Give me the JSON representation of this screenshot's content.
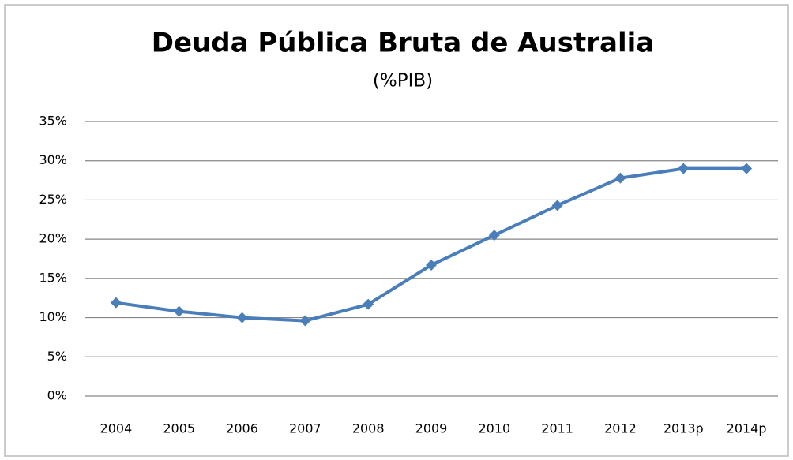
{
  "chart_data": {
    "type": "line",
    "title": "Deuda Pública Bruta de Australia",
    "subtitle": "(%PIB)",
    "categories": [
      "2004",
      "2005",
      "2006",
      "2007",
      "2008",
      "2009",
      "2010",
      "2011",
      "2012",
      "2013p",
      "2014p"
    ],
    "series": [
      {
        "name": "Deuda Pública Bruta",
        "color": "#4a7ebb",
        "values": [
          11.9,
          10.8,
          10.0,
          9.6,
          11.7,
          16.7,
          20.5,
          24.3,
          27.8,
          29.0,
          29.0
        ]
      }
    ],
    "ylim": [
      0,
      35
    ],
    "yticks": [
      {
        "value": 0,
        "label": "0%"
      },
      {
        "value": 5,
        "label": "5%"
      },
      {
        "value": 10,
        "label": "10%"
      },
      {
        "value": 15,
        "label": "15%"
      },
      {
        "value": 20,
        "label": "20%"
      },
      {
        "value": 25,
        "label": "25%"
      },
      {
        "value": 30,
        "label": "30%"
      },
      {
        "value": 35,
        "label": "35%"
      }
    ],
    "grid": true
  }
}
